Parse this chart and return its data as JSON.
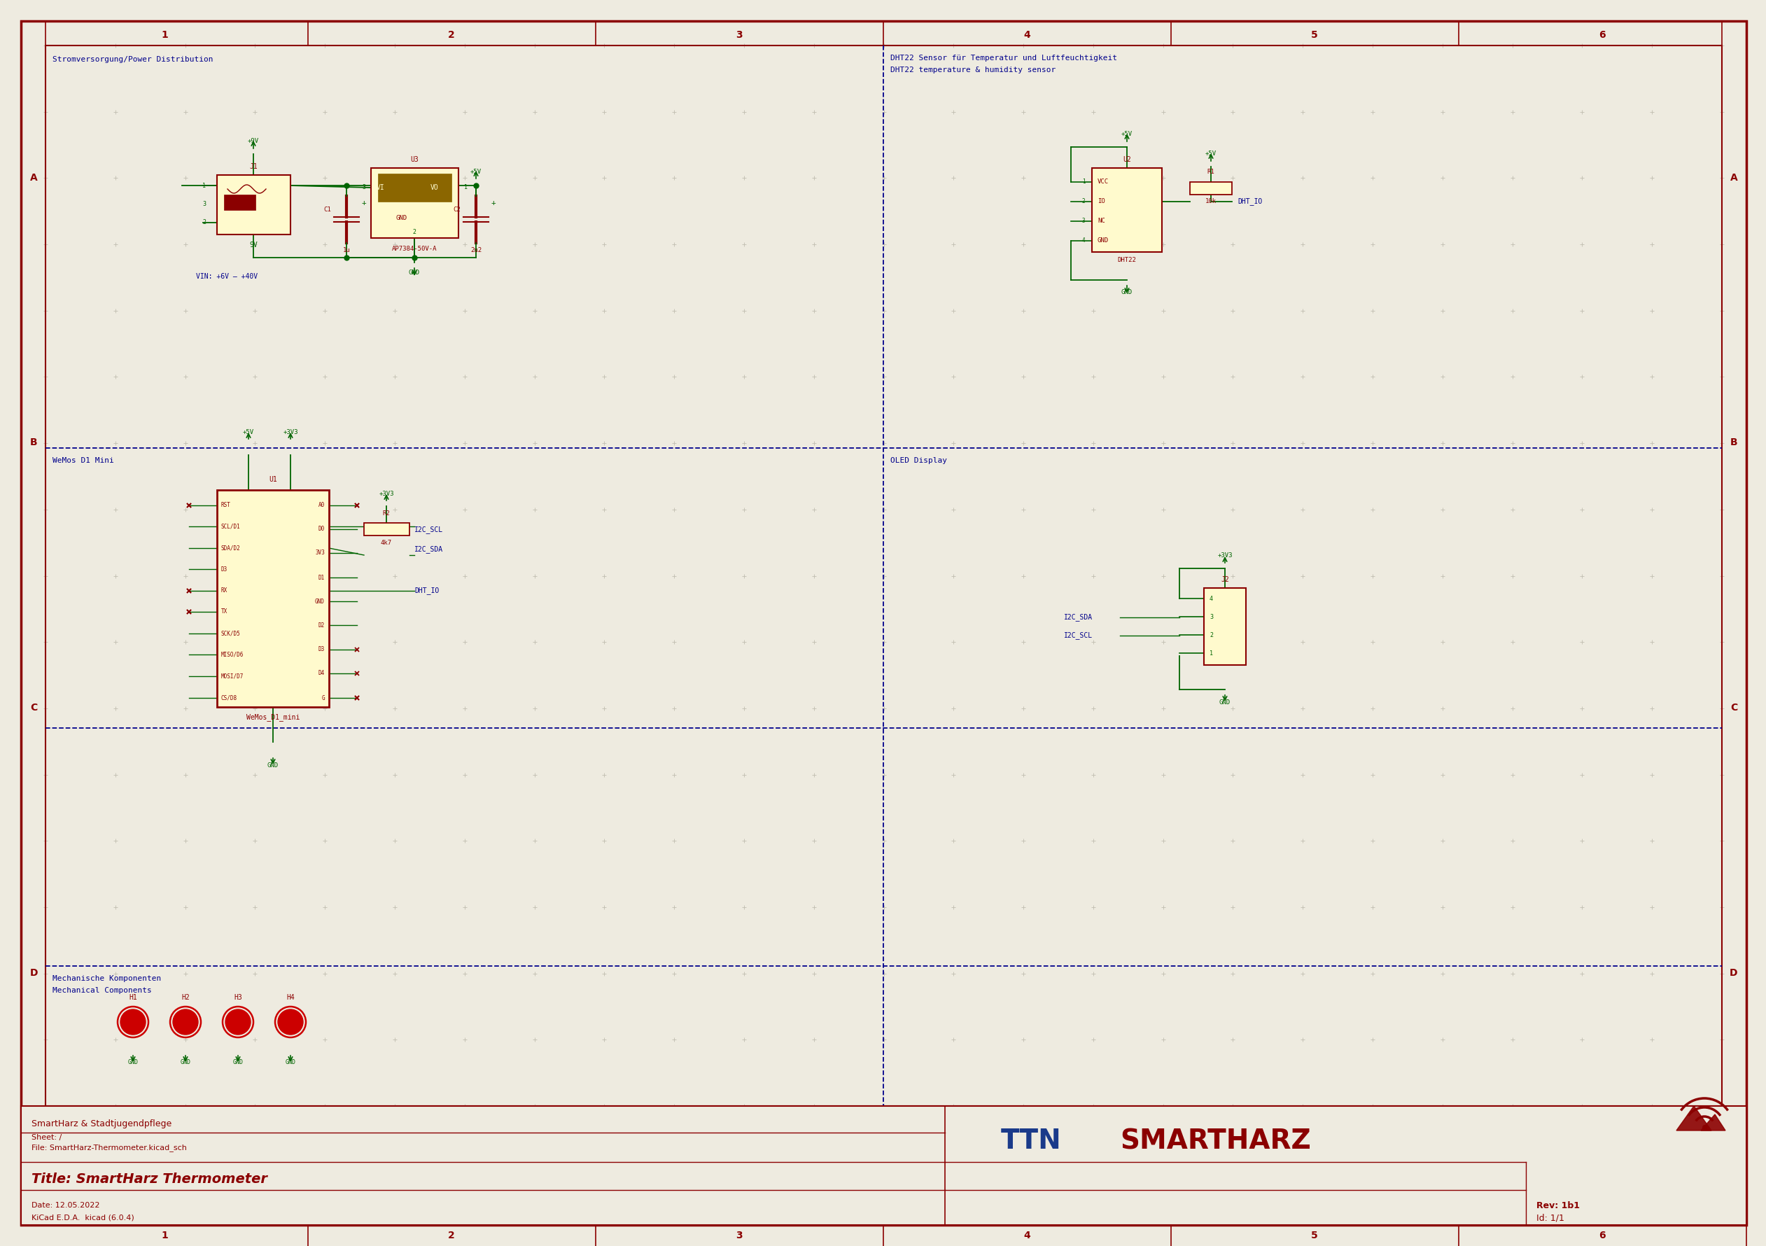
{
  "bg_color": "#eeebe0",
  "border_color": "#8b0000",
  "grid_dot_color": "#c0bdb0",
  "title_block": {
    "company": "SmartHarz & Stadtjugendpflege",
    "sheet": "Sheet: /",
    "file": "File: SmartHarz-Thermometer.kicad_sch",
    "title": "Title: SmartHarz Thermometer",
    "date": "Date: 12.05.2022",
    "kicad": "KiCad E.D.A.  kicad (6.0.4)",
    "rev": "Rev: 1b1",
    "id": "Id: 1/1"
  },
  "section_labels": {
    "power": "Stromversorgung/Power Distribution",
    "dht22_line1": "DHT22 Sensor für Temperatur und Luftfeuchtigkeit",
    "dht22_line2": "DHT22 temperature & humidity sensor",
    "wemos": "WeMos D1 Mini",
    "oled": "OLED Display",
    "mech1": "Mechanische Komponenten",
    "mech2": "Mechanical Components"
  },
  "schematic_color": "#006400",
  "component_border": "#8b0000",
  "component_fill": "#fffacd",
  "label_color": "#00008b",
  "wire_color": "#006400",
  "note_color": "#00008b",
  "ttn_color": "#1a3a8a",
  "smartharz_color": "#8b0000"
}
